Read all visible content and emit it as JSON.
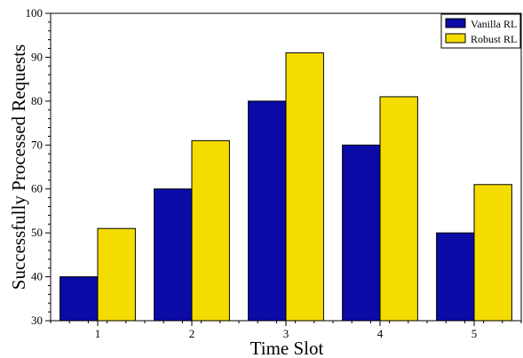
{
  "chart_data": {
    "type": "bar",
    "xlabel": "Time Slot",
    "ylabel": "Successfully Processed Requests",
    "categories": [
      "1",
      "2",
      "3",
      "4",
      "5"
    ],
    "ylim": [
      30,
      100
    ],
    "yticks": [
      30,
      40,
      50,
      60,
      70,
      80,
      90,
      100
    ],
    "grid": false,
    "legend_position": "top-right",
    "series": [
      {
        "name": "Vanilla RL",
        "color": "#0a0aa6",
        "values": [
          40,
          60,
          80,
          70,
          50
        ]
      },
      {
        "name": "Robust RL",
        "color": "#f5dc00",
        "values": [
          51,
          71,
          91,
          81,
          61
        ]
      }
    ]
  }
}
